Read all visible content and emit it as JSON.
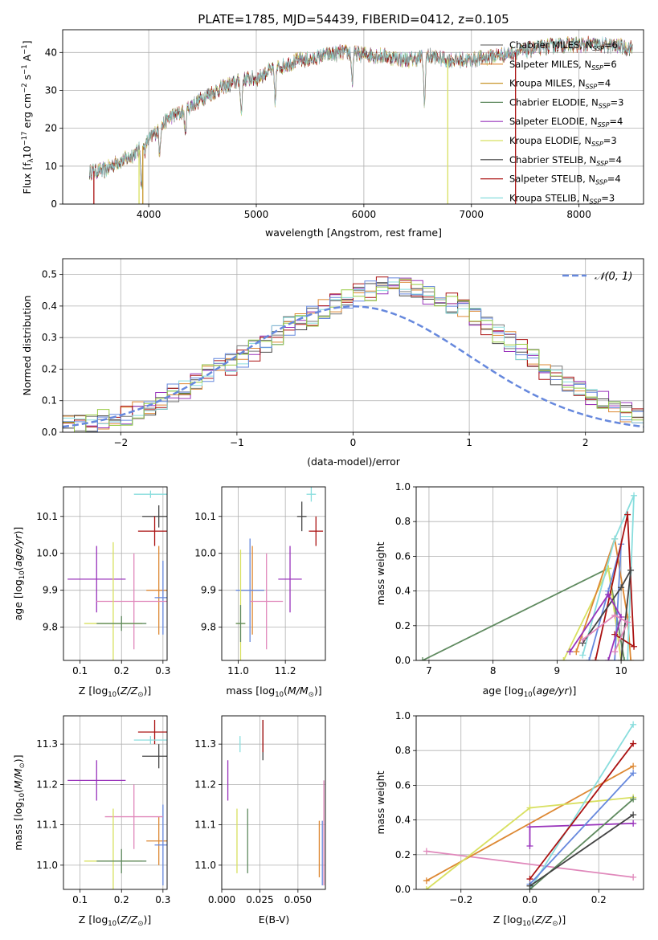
{
  "figure": {
    "title": "PLATE=1785, MJD=54439, FIBERID=0412, z=0.105"
  },
  "colors": {
    "c0": "#777777",
    "c1": "#dd8833",
    "c2": "#c8962a",
    "c3": "#5f8a5f",
    "c4": "#9933bb",
    "c5": "#d8e060",
    "c6": "#444444",
    "c7": "#aa1111",
    "c8": "#88dddd",
    "c9": "#6688dd",
    "c10": "#e088bb",
    "c11": "#99cc44",
    "normal": "#6688dd",
    "grid": "#b0b0b0"
  },
  "chart_data": [
    {
      "id": "spectrum",
      "type": "line",
      "title": "PLATE=1785, MJD=54439, FIBERID=0412, z=0.105",
      "xlabel": "wavelength [Angstrom, rest frame]",
      "ylabel": "Flux [f_λ 10^-17 erg cm^-2 s^-1 A^-1]",
      "xlim": [
        3200,
        8600
      ],
      "ylim": [
        0,
        46
      ],
      "xticks": [
        4000,
        5000,
        6000,
        7000,
        8000
      ],
      "yticks": [
        0,
        10,
        20,
        30,
        40
      ],
      "legend_position": "right",
      "series": [
        {
          "name": "Chabrier MILES, N_SSP=6",
          "color": "c0"
        },
        {
          "name": "Salpeter MILES, N_SSP=6",
          "color": "c1"
        },
        {
          "name": "Kroupa MILES, N_SSP=4",
          "color": "c2"
        },
        {
          "name": "Chabrier ELODIE, N_SSP=3",
          "color": "c3"
        },
        {
          "name": "Salpeter ELODIE, N_SSP=4",
          "color": "c4"
        },
        {
          "name": "Kroupa ELODIE, N_SSP=3",
          "color": "c5"
        },
        {
          "name": "Chabrier STELIB, N_SSP=4",
          "color": "c6"
        },
        {
          "name": "Salpeter STELIB, N_SSP=4",
          "color": "c7"
        },
        {
          "name": "Kroupa STELIB, N_SSP=3",
          "color": "c8"
        }
      ],
      "continuum": [
        [
          3450,
          8.5
        ],
        [
          3600,
          9
        ],
        [
          3700,
          11
        ],
        [
          3800,
          12
        ],
        [
          3900,
          14
        ],
        [
          4000,
          17
        ],
        [
          4100,
          20
        ],
        [
          4200,
          23
        ],
        [
          4300,
          24
        ],
        [
          4400,
          26
        ],
        [
          4500,
          28
        ],
        [
          4700,
          31
        ],
        [
          4900,
          33
        ],
        [
          5000,
          33
        ],
        [
          5100,
          35
        ],
        [
          5200,
          36
        ],
        [
          5300,
          37
        ],
        [
          5400,
          38
        ],
        [
          5500,
          38
        ],
        [
          5600,
          39
        ],
        [
          5800,
          40
        ],
        [
          6000,
          39.5
        ],
        [
          6200,
          39
        ],
        [
          6400,
          38
        ],
        [
          6600,
          39
        ],
        [
          6800,
          38
        ],
        [
          7000,
          38
        ],
        [
          7200,
          39
        ],
        [
          7400,
          40
        ],
        [
          7600,
          41
        ],
        [
          7800,
          42
        ],
        [
          8000,
          42
        ],
        [
          8200,
          42
        ],
        [
          8400,
          41.5
        ],
        [
          8500,
          41
        ]
      ],
      "features": [
        [
          3934,
          30
        ],
        [
          3968,
          5
        ],
        [
          4101,
          17
        ],
        [
          4340,
          20
        ],
        [
          4861,
          26
        ],
        [
          5175,
          26
        ],
        [
          5892,
          22
        ],
        [
          6563,
          37
        ]
      ],
      "drops": [
        [
          3490,
          "c7"
        ],
        [
          3910,
          "c5"
        ],
        [
          3945,
          "c2"
        ],
        [
          6780,
          "c5"
        ],
        [
          7410,
          "c7"
        ]
      ]
    },
    {
      "id": "residuals",
      "type": "step-histogram",
      "xlabel": "(data-model)/error",
      "ylabel": "Normed distribution",
      "xlim": [
        -2.5,
        2.5
      ],
      "ylim": [
        0,
        0.55
      ],
      "xticks": [
        -2,
        -1,
        0,
        1,
        2
      ],
      "yticks": [
        0.0,
        0.1,
        0.2,
        0.3,
        0.4,
        0.5
      ],
      "legend": "𝒩(0, 1)",
      "bin_edges_from": -2.5,
      "bin_width": 0.1,
      "base_hist": [
        0.02,
        0.025,
        0.03,
        0.04,
        0.045,
        0.055,
        0.07,
        0.085,
        0.1,
        0.12,
        0.14,
        0.165,
        0.18,
        0.2,
        0.215,
        0.24,
        0.26,
        0.28,
        0.31,
        0.335,
        0.35,
        0.37,
        0.39,
        0.41,
        0.42,
        0.44,
        0.45,
        0.46,
        0.47,
        0.46,
        0.45,
        0.44,
        0.42,
        0.41,
        0.39,
        0.365,
        0.34,
        0.31,
        0.285,
        0.26,
        0.23,
        0.2,
        0.18,
        0.155,
        0.14,
        0.12,
        0.1,
        0.08,
        0.065,
        0.05
      ],
      "series_colors": [
        "c0",
        "c1",
        "c4",
        "c6",
        "c7",
        "c8",
        "c9",
        "c11"
      ]
    },
    {
      "id": "age_vs_Z",
      "type": "errorbar",
      "xlabel": "Z [log10(Z/Z☉)]",
      "ylabel": "age [log10(age/yr)]",
      "xlim": [
        0.06,
        0.31
      ],
      "ylim": [
        9.71,
        10.18
      ],
      "xticks": [
        0.1,
        0.2,
        0.3
      ],
      "yticks": [
        9.8,
        9.9,
        10.0,
        10.1
      ],
      "points": [
        {
          "x": 0.14,
          "y": 9.93,
          "xe": 0.07,
          "ye": 0.09,
          "color": "c4"
        },
        {
          "x": 0.29,
          "y": 9.9,
          "xe": 0.03,
          "ye": 0.12,
          "color": "c1"
        },
        {
          "x": 0.3,
          "y": 9.88,
          "xe": 0.02,
          "ye": 0.1,
          "color": "c9"
        },
        {
          "x": 0.23,
          "y": 9.87,
          "xe": 0.09,
          "ye": 0.13,
          "color": "c10"
        },
        {
          "x": 0.29,
          "y": 10.1,
          "xe": 0.04,
          "ye": 0.03,
          "color": "c6"
        },
        {
          "x": 0.28,
          "y": 10.06,
          "xe": 0.04,
          "ye": 0.04,
          "color": "c7"
        },
        {
          "x": 0.27,
          "y": 10.16,
          "xe": 0.04,
          "ye": 0.01,
          "color": "c8"
        },
        {
          "x": 0.18,
          "y": 9.81,
          "xe": 0.07,
          "ye": 0.22,
          "color": "c5"
        },
        {
          "x": 0.2,
          "y": 9.81,
          "xe": 0.06,
          "ye": 0.02,
          "color": "c3"
        }
      ]
    },
    {
      "id": "age_vs_mass",
      "type": "errorbar",
      "xlabel": "mass [log10(M/M☉)]",
      "ylabel": "",
      "xlim": [
        10.93,
        11.37
      ],
      "ylim": [
        9.71,
        10.18
      ],
      "xticks": [
        11.0,
        11.2
      ],
      "yticks": [
        9.8,
        9.9,
        10.0,
        10.1
      ],
      "points": [
        {
          "x": 11.22,
          "y": 9.93,
          "xe": 0.05,
          "ye": 0.09,
          "color": "c4"
        },
        {
          "x": 11.06,
          "y": 9.9,
          "xe": 0.05,
          "ye": 0.12,
          "color": "c1"
        },
        {
          "x": 11.05,
          "y": 9.9,
          "xe": 0.06,
          "ye": 0.14,
          "color": "c9"
        },
        {
          "x": 11.12,
          "y": 9.87,
          "xe": 0.07,
          "ye": 0.13,
          "color": "c10"
        },
        {
          "x": 11.27,
          "y": 10.1,
          "xe": 0.02,
          "ye": 0.04,
          "color": "c6"
        },
        {
          "x": 11.33,
          "y": 10.06,
          "xe": 0.03,
          "ye": 0.04,
          "color": "c7"
        },
        {
          "x": 11.31,
          "y": 10.16,
          "xe": 0.02,
          "ye": 0.02,
          "color": "c8"
        },
        {
          "x": 11.01,
          "y": 9.81,
          "xe": 0.02,
          "ye": 0.2,
          "color": "c5"
        },
        {
          "x": 11.01,
          "y": 9.81,
          "xe": 0.02,
          "ye": 0.05,
          "color": "c3"
        }
      ]
    },
    {
      "id": "weight_vs_age",
      "type": "line",
      "xlabel": "age [log10(age/yr)]",
      "ylabel": "mass weight",
      "xlim": [
        6.8,
        10.35
      ],
      "ylim": [
        0,
        1.0
      ],
      "xticks": [
        7,
        8,
        9,
        10
      ],
      "yticks": [
        0.0,
        0.2,
        0.4,
        0.6,
        0.8,
        1.0
      ],
      "series": [
        {
          "color": "c3",
          "points": [
            [
              6.9,
              0.0
            ],
            [
              9.8,
              0.53
            ],
            [
              10.05,
              0.0
            ]
          ]
        },
        {
          "color": "c5",
          "points": [
            [
              9.1,
              0.0
            ],
            [
              9.8,
              0.53
            ],
            [
              10.0,
              0.0
            ]
          ]
        },
        {
          "color": "c1",
          "points": [
            [
              9.3,
              0.05
            ],
            [
              9.9,
              0.7
            ],
            [
              10.1,
              0.25
            ],
            [
              10.15,
              0.0
            ]
          ]
        },
        {
          "color": "c8",
          "points": [
            [
              9.4,
              0.03
            ],
            [
              9.9,
              0.7
            ],
            [
              10.2,
              0.95
            ],
            [
              10.1,
              0.0
            ]
          ]
        },
        {
          "color": "c9",
          "points": [
            [
              9.5,
              0.0
            ],
            [
              9.8,
              0.4
            ],
            [
              10.0,
              0.67
            ],
            [
              9.9,
              0.0
            ]
          ]
        },
        {
          "color": "c7",
          "points": [
            [
              9.6,
              0.0
            ],
            [
              10.1,
              0.84
            ],
            [
              10.2,
              0.08
            ],
            [
              9.9,
              0.15
            ]
          ]
        },
        {
          "color": "c6",
          "points": [
            [
              9.4,
              0.1
            ],
            [
              10.0,
              0.42
            ],
            [
              10.15,
              0.52
            ],
            [
              10.0,
              0.0
            ]
          ]
        },
        {
          "color": "c4",
          "points": [
            [
              9.2,
              0.05
            ],
            [
              9.8,
              0.38
            ],
            [
              10.0,
              0.25
            ],
            [
              9.8,
              0.0
            ]
          ]
        },
        {
          "color": "c10",
          "points": [
            [
              9.4,
              0.12
            ],
            [
              9.9,
              0.26
            ],
            [
              10.1,
              0.22
            ],
            [
              9.9,
              0.05
            ]
          ]
        }
      ]
    },
    {
      "id": "mass_vs_Z",
      "type": "errorbar",
      "xlabel": "Z [log10(Z/Z☉)]",
      "ylabel": "mass [log10(M/M☉)]",
      "xlim": [
        0.06,
        0.31
      ],
      "ylim": [
        10.94,
        11.37
      ],
      "xticks": [
        0.1,
        0.2,
        0.3
      ],
      "yticks": [
        11.0,
        11.1,
        11.2,
        11.3
      ],
      "points": [
        {
          "x": 0.14,
          "y": 11.21,
          "xe": 0.07,
          "ye": 0.05,
          "color": "c4"
        },
        {
          "x": 0.29,
          "y": 11.06,
          "xe": 0.03,
          "ye": 0.06,
          "color": "c1"
        },
        {
          "x": 0.3,
          "y": 11.05,
          "xe": 0.02,
          "ye": 0.1,
          "color": "c9"
        },
        {
          "x": 0.23,
          "y": 11.12,
          "xe": 0.07,
          "ye": 0.08,
          "color": "c10"
        },
        {
          "x": 0.29,
          "y": 11.27,
          "xe": 0.04,
          "ye": 0.03,
          "color": "c6"
        },
        {
          "x": 0.28,
          "y": 11.33,
          "xe": 0.04,
          "ye": 0.03,
          "color": "c7"
        },
        {
          "x": 0.27,
          "y": 11.31,
          "xe": 0.04,
          "ye": 0.01,
          "color": "c8"
        },
        {
          "x": 0.18,
          "y": 11.01,
          "xe": 0.07,
          "ye": 0.13,
          "color": "c5"
        },
        {
          "x": 0.2,
          "y": 11.01,
          "xe": 0.06,
          "ye": 0.03,
          "color": "c3"
        }
      ]
    },
    {
      "id": "mass_vs_ebv",
      "type": "errorbar",
      "xlabel": "E(B-V)",
      "ylabel": "",
      "xlim": [
        0.0,
        0.068
      ],
      "ylim": [
        10.94,
        11.37
      ],
      "xticks": [
        0.0,
        0.025,
        0.05
      ],
      "xticklabels": [
        "0.000",
        "0.025",
        "0.050"
      ],
      "yticks": [
        11.0,
        11.1,
        11.2,
        11.3
      ],
      "points": [
        {
          "x": 0.004,
          "y": 11.21,
          "xe": 0.0,
          "ye": 0.05,
          "color": "c4"
        },
        {
          "x": 0.064,
          "y": 11.04,
          "xe": 0.0,
          "ye": 0.07,
          "color": "c1"
        },
        {
          "x": 0.066,
          "y": 11.03,
          "xe": 0.0,
          "ye": 0.08,
          "color": "c9"
        },
        {
          "x": 0.067,
          "y": 11.08,
          "xe": 0.0,
          "ye": 0.13,
          "color": "c10"
        },
        {
          "x": 0.027,
          "y": 11.31,
          "xe": 0.0,
          "ye": 0.05,
          "color": "c6"
        },
        {
          "x": 0.027,
          "y": 11.32,
          "xe": 0.0,
          "ye": 0.04,
          "color": "c7"
        },
        {
          "x": 0.012,
          "y": 11.3,
          "xe": 0.0,
          "ye": 0.02,
          "color": "c8"
        },
        {
          "x": 0.01,
          "y": 11.06,
          "xe": 0.0,
          "ye": 0.08,
          "color": "c5"
        },
        {
          "x": 0.017,
          "y": 11.06,
          "xe": 0.0,
          "ye": 0.08,
          "color": "c3"
        }
      ]
    },
    {
      "id": "weight_vs_Z",
      "type": "line",
      "xlabel": "Z [log10(Z/Z☉)]",
      "ylabel": "mass weight",
      "xlim": [
        -0.33,
        0.33
      ],
      "ylim": [
        0,
        1.0
      ],
      "xticks": [
        -0.2,
        0.0,
        0.2
      ],
      "yticks": [
        0.0,
        0.2,
        0.4,
        0.6,
        0.8,
        1.0
      ],
      "series": [
        {
          "color": "c10",
          "points": [
            [
              -0.3,
              0.22
            ],
            [
              0.3,
              0.07
            ]
          ]
        },
        {
          "color": "c1",
          "points": [
            [
              -0.3,
              0.05
            ],
            [
              0.3,
              0.71
            ]
          ]
        },
        {
          "color": "c5",
          "points": [
            [
              -0.3,
              0.0
            ],
            [
              0.0,
              0.47
            ],
            [
              0.3,
              0.53
            ]
          ]
        },
        {
          "color": "c4",
          "points": [
            [
              0.0,
              0.25
            ],
            [
              0.0,
              0.36
            ],
            [
              0.3,
              0.38
            ]
          ]
        },
        {
          "color": "c8",
          "points": [
            [
              0.0,
              0.0
            ],
            [
              0.3,
              0.95
            ]
          ]
        },
        {
          "color": "c7",
          "points": [
            [
              0.0,
              0.06
            ],
            [
              0.3,
              0.84
            ]
          ]
        },
        {
          "color": "c9",
          "points": [
            [
              0.0,
              0.03
            ],
            [
              0.3,
              0.67
            ]
          ]
        },
        {
          "color": "c3",
          "points": [
            [
              0.0,
              0.0
            ],
            [
              0.3,
              0.52
            ]
          ]
        },
        {
          "color": "c6",
          "points": [
            [
              0.0,
              0.02
            ],
            [
              0.3,
              0.43
            ]
          ]
        }
      ]
    }
  ]
}
